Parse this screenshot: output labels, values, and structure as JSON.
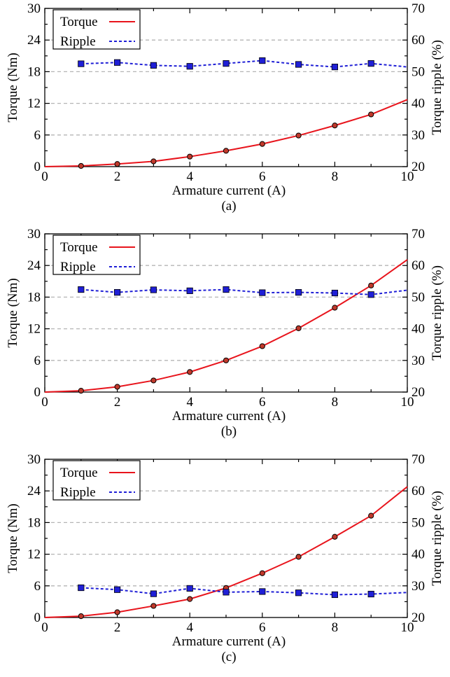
{
  "chart_data": [
    {
      "panel_label": "(a)",
      "type": "line",
      "xlabel": "Armature current (A)",
      "ylabel_left": "Torque (Nm)",
      "ylabel_right": "Torque ripple (%)",
      "xlim": [
        0,
        10
      ],
      "ylim_left": [
        0,
        30
      ],
      "ylim_right": [
        20,
        70
      ],
      "x_ticks": [
        "0",
        "2",
        "4",
        "6",
        "8",
        "10"
      ],
      "y_left_ticks": [
        "0",
        "6",
        "12",
        "18",
        "24",
        "30"
      ],
      "y_right_ticks": [
        "20",
        "30",
        "40",
        "50",
        "60",
        "70"
      ],
      "grid": "dashed horizontal",
      "legend_position": "top-left",
      "series": [
        {
          "name": "Torque",
          "axis": "left",
          "color": "#e8141c",
          "style": "solid",
          "marker": "circle",
          "x": [
            0,
            1,
            2,
            3,
            4,
            5,
            6,
            7,
            8,
            9,
            10
          ],
          "values": [
            0.0,
            0.13,
            0.5,
            1.0,
            1.9,
            3.0,
            4.3,
            5.9,
            7.8,
            9.9,
            12.7
          ],
          "markers_at": [
            1,
            2,
            3,
            4,
            5,
            6,
            7,
            8,
            9
          ]
        },
        {
          "name": "Ripple",
          "axis": "right",
          "color": "#1f1fd6",
          "style": "dashed",
          "marker": "square",
          "x": [
            1,
            2,
            3,
            4,
            5,
            6,
            7,
            8,
            9,
            10
          ],
          "values": [
            52.5,
            52.9,
            52.0,
            51.7,
            52.6,
            53.5,
            52.3,
            51.5,
            52.6,
            51.5
          ],
          "markers_at": [
            1,
            2,
            3,
            4,
            5,
            6,
            7,
            8,
            9
          ]
        }
      ]
    },
    {
      "panel_label": "(b)",
      "type": "line",
      "xlabel": "Armature current (A)",
      "ylabel_left": "Torque (Nm)",
      "ylabel_right": "Torque ripple (%)",
      "xlim": [
        0,
        10
      ],
      "ylim_left": [
        0,
        30
      ],
      "ylim_right": [
        20,
        70
      ],
      "x_ticks": [
        "0",
        "2",
        "4",
        "6",
        "8",
        "10"
      ],
      "y_left_ticks": [
        "0",
        "6",
        "12",
        "18",
        "24",
        "30"
      ],
      "y_right_ticks": [
        "20",
        "30",
        "40",
        "50",
        "60",
        "70"
      ],
      "grid": "dashed horizontal",
      "legend_position": "top-left",
      "series": [
        {
          "name": "Torque",
          "axis": "left",
          "color": "#e8141c",
          "style": "solid",
          "marker": "circle",
          "x": [
            0,
            1,
            2,
            3,
            4,
            5,
            6,
            7,
            8,
            9,
            10
          ],
          "values": [
            0.0,
            0.25,
            1.0,
            2.2,
            3.8,
            6.0,
            8.7,
            12.1,
            16.0,
            20.2,
            25.1
          ],
          "markers_at": [
            1,
            2,
            3,
            4,
            5,
            6,
            7,
            8,
            9
          ]
        },
        {
          "name": "Ripple",
          "axis": "right",
          "color": "#1f1fd6",
          "style": "dashed",
          "marker": "square",
          "x": [
            1,
            2,
            3,
            4,
            5,
            6,
            7,
            8,
            9,
            10
          ],
          "values": [
            52.4,
            51.5,
            52.3,
            52.0,
            52.4,
            51.4,
            51.5,
            51.3,
            50.8,
            52.2
          ],
          "markers_at": [
            1,
            2,
            3,
            4,
            5,
            6,
            7,
            8,
            9
          ]
        }
      ]
    },
    {
      "panel_label": "(c)",
      "type": "line",
      "xlabel": "Armature current (A)",
      "ylabel_left": "Torque (Nm)",
      "ylabel_right": "Torque ripple (%)",
      "xlim": [
        0,
        10
      ],
      "ylim_left": [
        0,
        30
      ],
      "ylim_right": [
        20,
        70
      ],
      "x_ticks": [
        "0",
        "2",
        "4",
        "6",
        "8",
        "10"
      ],
      "y_left_ticks": [
        "0",
        "6",
        "12",
        "18",
        "24",
        "30"
      ],
      "y_right_ticks": [
        "20",
        "30",
        "40",
        "50",
        "60",
        "70"
      ],
      "grid": "dashed horizontal",
      "legend_position": "top-left",
      "series": [
        {
          "name": "Torque",
          "axis": "left",
          "color": "#e8141c",
          "style": "solid",
          "marker": "circle",
          "x": [
            0,
            1,
            2,
            3,
            4,
            5,
            6,
            7,
            8,
            9,
            10
          ],
          "values": [
            0.0,
            0.25,
            1.0,
            2.2,
            3.5,
            5.6,
            8.4,
            11.5,
            15.3,
            19.3,
            24.8
          ],
          "markers_at": [
            1,
            2,
            3,
            4,
            5,
            6,
            7,
            8,
            9
          ]
        },
        {
          "name": "Ripple",
          "axis": "right",
          "color": "#1f1fd6",
          "style": "dashed",
          "marker": "square",
          "x": [
            1,
            2,
            3,
            4,
            5,
            6,
            7,
            8,
            9,
            10
          ],
          "values": [
            29.4,
            28.8,
            27.5,
            29.2,
            28.0,
            28.2,
            27.8,
            27.2,
            27.4,
            27.9
          ],
          "markers_at": [
            1,
            2,
            3,
            4,
            5,
            6,
            7,
            8,
            9
          ]
        }
      ]
    }
  ]
}
